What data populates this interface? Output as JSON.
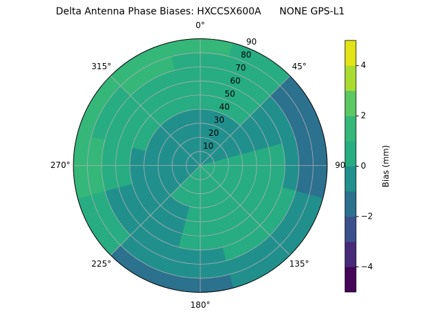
{
  "chart_data": {
    "type": "polar-contour",
    "title": "Delta Antenna Phase Biases: HXCCSX600A      NONE GPS-L1",
    "azimuth": [
      0,
      30,
      60,
      90,
      120,
      150,
      180,
      210,
      240,
      270,
      300,
      330
    ],
    "zenith": [
      5,
      15,
      25,
      35,
      45,
      55,
      65,
      75,
      85
    ],
    "values": [
      [
        -0.5,
        -0.5,
        -0.5,
        -0.5,
        0.5,
        0.5,
        0.5,
        0.5,
        1.5
      ],
      [
        -0.5,
        -0.5,
        -0.5,
        -0.5,
        0.5,
        0.5,
        0.5,
        0.5,
        0.5
      ],
      [
        -0.5,
        -0.5,
        -0.5,
        -0.5,
        -0.5,
        -0.5,
        -0.5,
        -1.5,
        -1.5
      ],
      [
        0.5,
        0.5,
        0.5,
        0.5,
        0.5,
        0.5,
        -0.5,
        -1.5,
        -1.5
      ],
      [
        0.5,
        0.5,
        0.5,
        0.5,
        0.5,
        0.5,
        0.5,
        -0.5,
        -0.5
      ],
      [
        0.5,
        0.5,
        0.5,
        0.5,
        0.5,
        0.5,
        0.5,
        -0.5,
        -0.5
      ],
      [
        0.5,
        0.5,
        0.5,
        0.5,
        0.5,
        0.5,
        -0.5,
        -0.5,
        -1.5
      ],
      [
        0.5,
        0.5,
        0.5,
        -0.5,
        -0.5,
        -0.5,
        -0.5,
        -0.5,
        -1.5
      ],
      [
        -0.5,
        -0.5,
        -0.5,
        -0.5,
        -0.5,
        -0.5,
        -0.5,
        0.5,
        0.5
      ],
      [
        -0.5,
        -0.5,
        -0.5,
        -0.5,
        -0.5,
        0.5,
        0.5,
        1.5,
        1.5
      ],
      [
        -0.5,
        -0.5,
        -0.5,
        -0.5,
        0.5,
        0.5,
        0.5,
        0.5,
        1.5
      ],
      [
        -0.5,
        -0.5,
        -0.5,
        -0.5,
        0.5,
        0.5,
        0.5,
        1.5,
        1.5
      ]
    ],
    "rlim": [
      0,
      90
    ],
    "rticks": [
      10,
      20,
      30,
      40,
      50,
      60,
      70,
      80,
      90
    ],
    "thetaticks": [
      {
        "value": 0,
        "label": "0°"
      },
      {
        "value": 45,
        "label": "45°"
      },
      90,
      {
        "value": 135,
        "label": "135°"
      },
      {
        "value": 180,
        "label": "180°"
      },
      {
        "value": 225,
        "label": "225°"
      },
      {
        "value": 270,
        "label": "270°"
      },
      {
        "value": 315,
        "label": "315°"
      }
    ],
    "grid": true,
    "colorbar": {
      "label": "Bias (mm)",
      "levels": [
        -5,
        -4,
        -3,
        -2,
        -1,
        0,
        1,
        2,
        3,
        4,
        5
      ],
      "colors": [
        "#450559",
        "#472a7a",
        "#3b518b",
        "#2c718e",
        "#21908d",
        "#27ad81",
        "#35b779",
        "#5cc863",
        "#aadc32",
        "#e3e418"
      ],
      "ticks": [
        {
          "value": -4,
          "label": "−4"
        },
        {
          "value": -2,
          "label": "−2"
        },
        0,
        2,
        4
      ]
    }
  }
}
